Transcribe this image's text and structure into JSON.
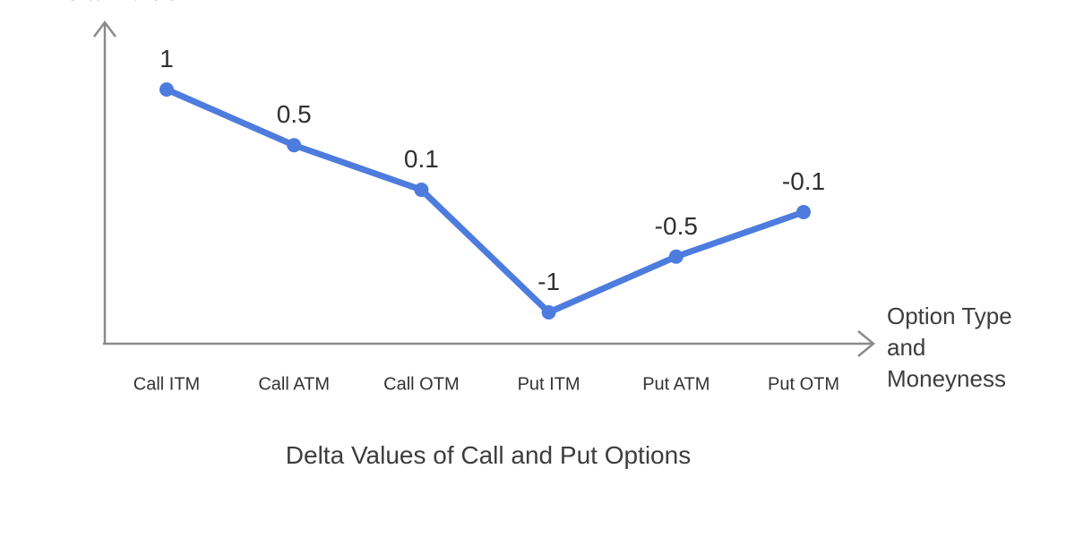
{
  "chart": {
    "title": "Delta Values of Call and Put Options",
    "y_axis_title": "Delta Value",
    "x_axis_title": "Option Type and Moneyness",
    "colors": {
      "line": "#4D7CDE",
      "point": "#4D7CDE",
      "axis": "#8A8A8A",
      "title_text": "#3D3D3D",
      "label_text": "#303030",
      "background": "#FFFFFF"
    }
  },
  "chart_data": {
    "type": "line",
    "categories": [
      "Call ITM",
      "Call ATM",
      "Call OTM",
      "Put ITM",
      "Put ATM",
      "Put OTM"
    ],
    "values": [
      1,
      0.5,
      0.1,
      -1,
      -0.5,
      -0.1
    ],
    "value_labels": [
      "1",
      "0.5",
      "0.1",
      "-1",
      "-0.5",
      "-0.1"
    ],
    "title": "Delta Values of Call and Put Options",
    "xlabel": "Option Type and Moneyness",
    "ylabel": "Delta Value",
    "ylim": [
      -1.3,
      1.6
    ],
    "grid": false,
    "legend": false,
    "markers": true
  }
}
